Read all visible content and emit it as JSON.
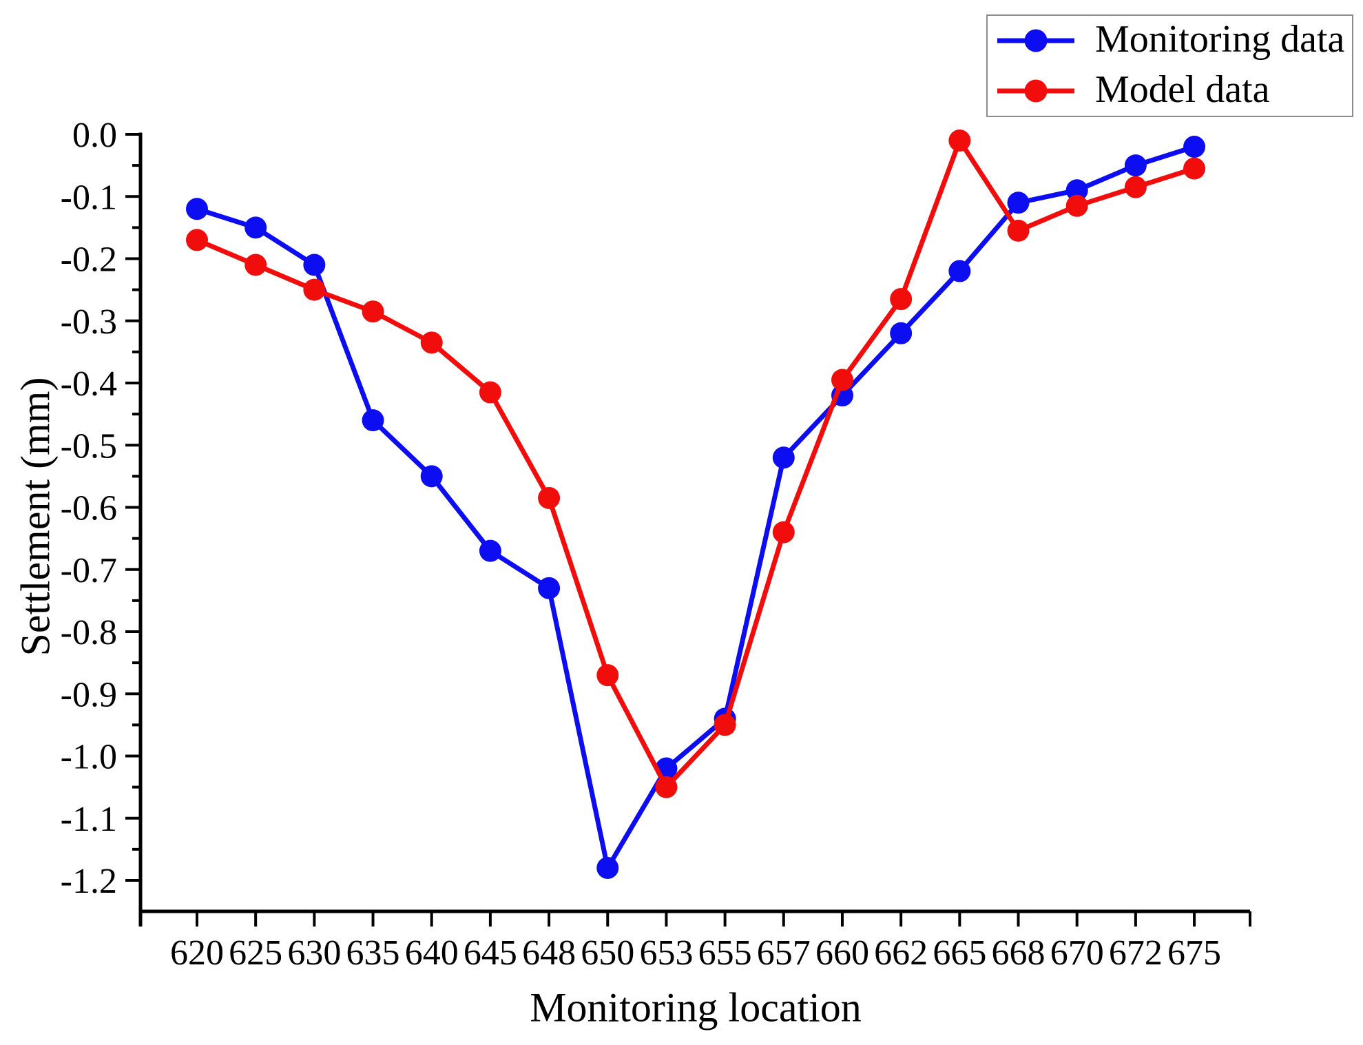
{
  "figure": {
    "xlabel": "Monitoring location",
    "ylabel": "Settlement (mm)"
  },
  "chart_data": {
    "type": "line",
    "title": "",
    "xlabel": "Monitoring location",
    "ylabel": "Settlement (mm)",
    "categories": [
      "620",
      "625",
      "630",
      "635",
      "640",
      "645",
      "648",
      "650",
      "653",
      "655",
      "657",
      "660",
      "662",
      "665",
      "668",
      "670",
      "672",
      "675"
    ],
    "series": [
      {
        "name": "Monitoring data",
        "color": "#0d0df2",
        "values": [
          -0.12,
          -0.15,
          -0.21,
          -0.46,
          -0.55,
          -0.67,
          -0.73,
          -1.18,
          -1.02,
          -0.94,
          -0.52,
          -0.42,
          -0.32,
          -0.22,
          -0.11,
          -0.09,
          -0.05,
          -0.02
        ]
      },
      {
        "name": "Model data",
        "color": "#f20d0d",
        "values": [
          -0.17,
          -0.21,
          -0.25,
          -0.285,
          -0.335,
          -0.415,
          -0.585,
          -0.87,
          -1.05,
          -0.95,
          -0.64,
          -0.395,
          -0.265,
          -0.01,
          -0.155,
          -0.115,
          -0.085,
          -0.055
        ]
      }
    ],
    "ylim": [
      -1.25,
      0.05
    ],
    "y_major_ticks": [
      "0.0",
      "-0.1",
      "-0.2",
      "-0.3",
      "-0.4",
      "-0.5",
      "-0.6",
      "-0.7",
      "-0.8",
      "-0.9",
      "-1.0",
      "-1.1",
      "-1.2"
    ],
    "y_major_step": 0.1,
    "y_minor_step": 0.05,
    "grid": false,
    "legend_position": "top-right",
    "marker": "circle",
    "axis_color": "#000000"
  }
}
